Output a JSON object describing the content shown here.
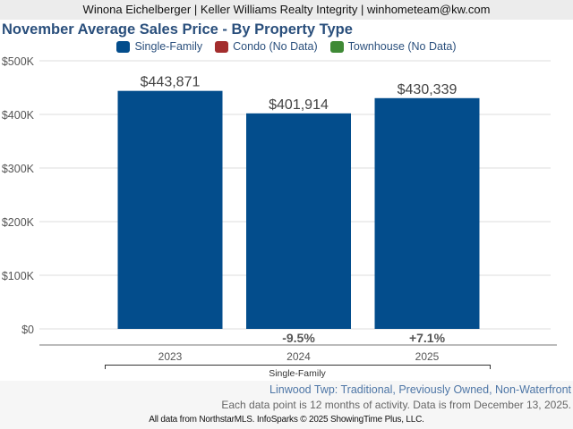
{
  "header": {
    "text": "Winona Eichelberger | Keller Williams Realty Integrity | winhometeam@kw.com"
  },
  "chart_data": {
    "type": "bar",
    "title": "November Average Sales Price - By Property Type",
    "legend": [
      {
        "label": "Single-Family",
        "color": "#034d8c"
      },
      {
        "label": "Condo (No Data)",
        "color": "#a32d2d"
      },
      {
        "label": "Townhouse (No Data)",
        "color": "#3f8a36"
      }
    ],
    "legend_position": "top-center",
    "categories": [
      "2023",
      "2024",
      "2025"
    ],
    "series": [
      {
        "name": "Single-Family",
        "values": [
          443871,
          401914,
          430339
        ],
        "labels": [
          "$443,871",
          "$401,914",
          "$430,339"
        ],
        "color": "#034d8c"
      }
    ],
    "changes": [
      "",
      "-9.5%",
      "+7.1%"
    ],
    "group_label": "Single-Family",
    "ylim": [
      0,
      500000
    ],
    "yticks": [
      0,
      100000,
      200000,
      300000,
      400000,
      500000
    ],
    "ytick_labels": [
      "$0",
      "$100K",
      "$200K",
      "$300K",
      "$400K",
      "$500K"
    ],
    "grid": true
  },
  "footer": {
    "area": "Linwood Twp: Traditional, Previously Owned, Non-Waterfront",
    "note": "Each data point is 12 months of activity. Data is from December 13, 2025.",
    "credit": "All data from NorthstarMLS. InfoSparks © 2025 ShowingTime Plus, LLC."
  }
}
